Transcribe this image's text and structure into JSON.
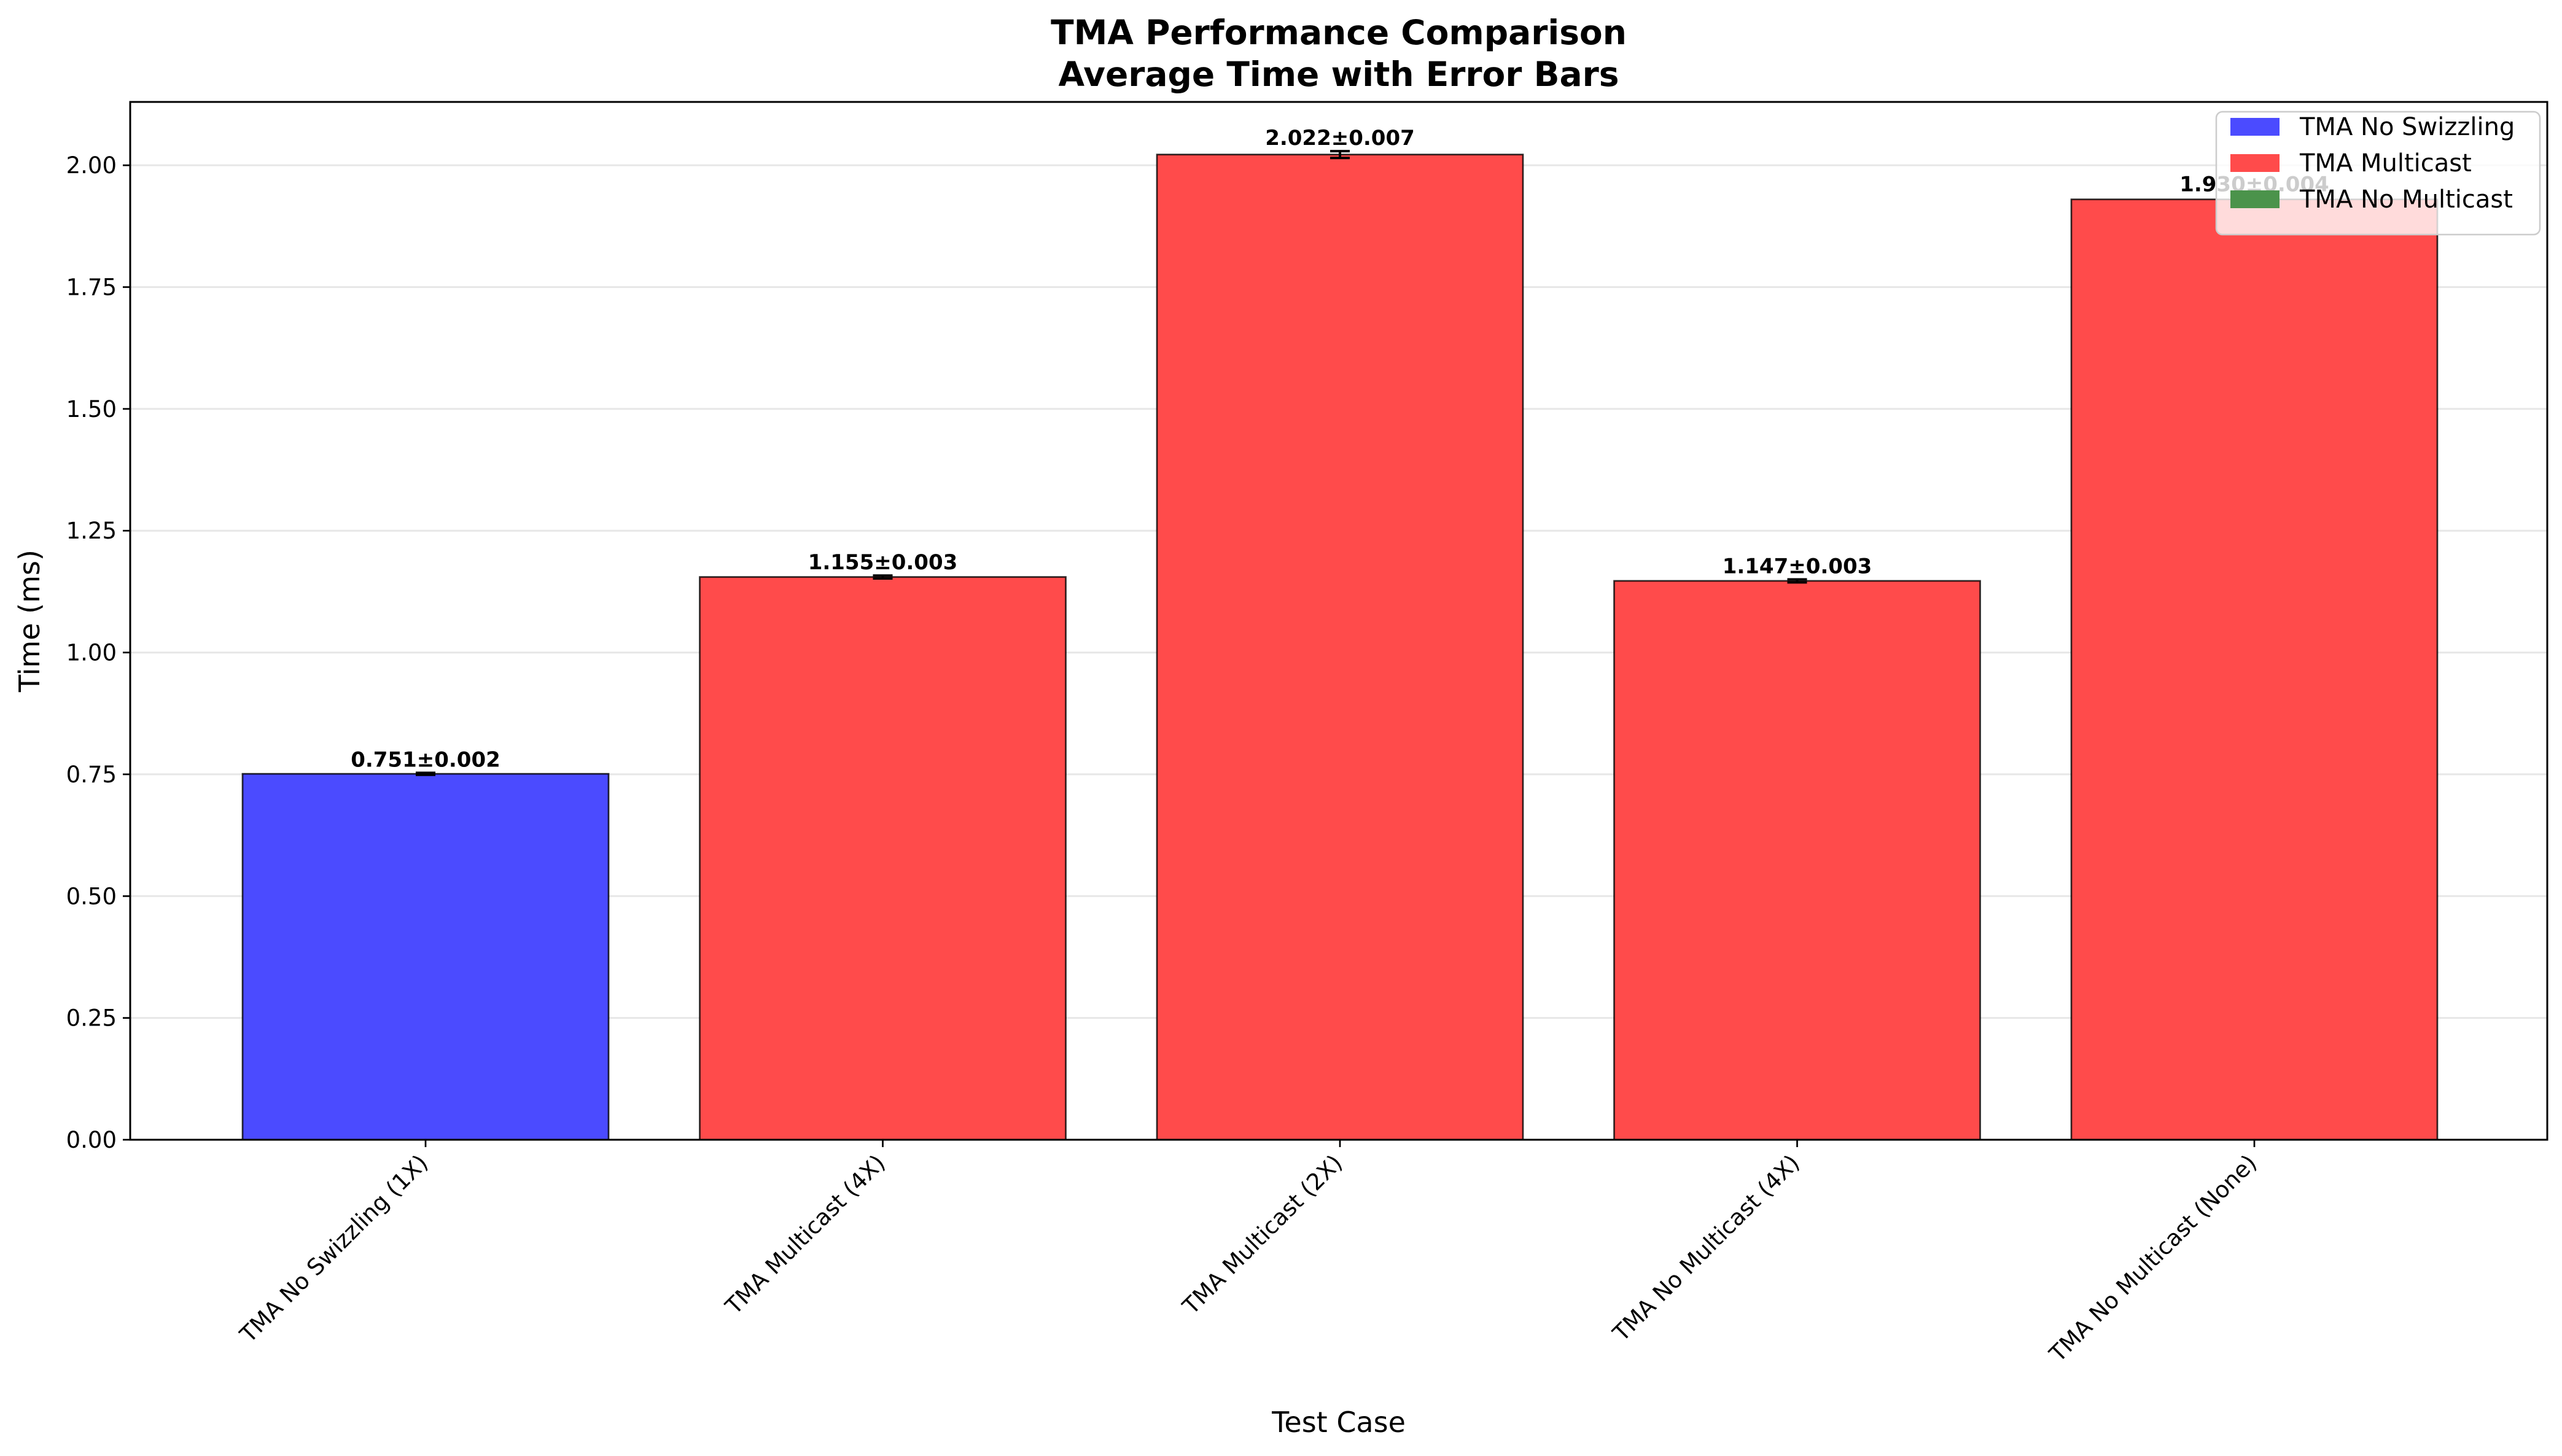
{
  "chart_data": {
    "type": "bar",
    "title": "TMA Performance Comparison",
    "subtitle": "Average Time with Error Bars",
    "xlabel": "Test Case",
    "ylabel": "Time (ms)",
    "ylim": [
      0,
      2.13
    ],
    "yticks": [
      "0.00",
      "0.25",
      "0.50",
      "0.75",
      "1.00",
      "1.25",
      "1.50",
      "1.75",
      "2.00"
    ],
    "grid": "y",
    "legend_position": "top-right",
    "categories": [
      "TMA No Swizzling (1X)",
      "TMA Multicast (4X)",
      "TMA Multicast (2X)",
      "TMA No Multicast (4X)",
      "TMA No Multicast (None)"
    ],
    "values": [
      0.751,
      1.155,
      2.022,
      1.147,
      1.93
    ],
    "errors": [
      0.002,
      0.003,
      0.007,
      0.003,
      0.004
    ],
    "bar_labels": [
      "0.751±0.002",
      "1.155±0.003",
      "2.022±0.007",
      "1.147±0.003",
      "1.930±0.004"
    ],
    "bar_colors": [
      "#4b4bff",
      "#ff4b4b",
      "#ff4b4b",
      "#ff4b4b",
      "#ff4b4b"
    ],
    "legend": [
      {
        "label": "TMA No Swizzling",
        "color": "#4b4bff"
      },
      {
        "label": "TMA Multicast",
        "color": "#ff4b4b"
      },
      {
        "label": "TMA No Multicast",
        "color": "#4b934b"
      }
    ]
  }
}
